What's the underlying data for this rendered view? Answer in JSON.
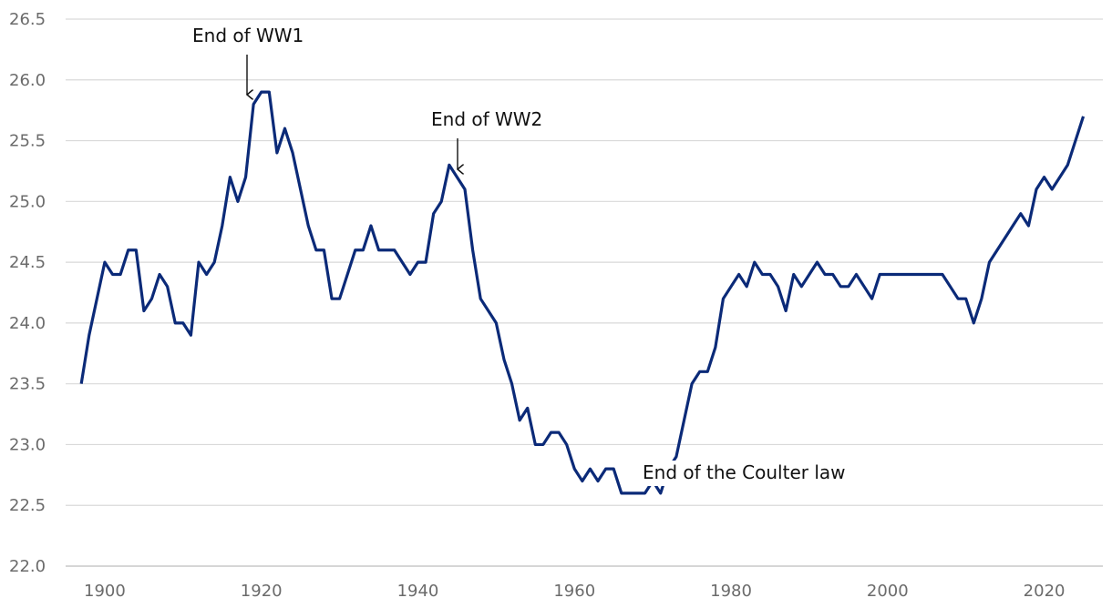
{
  "chart_data": {
    "type": "line",
    "x": [
      1897,
      1898,
      1899,
      1900,
      1901,
      1902,
      1903,
      1904,
      1905,
      1906,
      1907,
      1908,
      1909,
      1910,
      1911,
      1912,
      1913,
      1914,
      1915,
      1916,
      1917,
      1918,
      1919,
      1920,
      1921,
      1922,
      1923,
      1924,
      1925,
      1926,
      1927,
      1928,
      1929,
      1930,
      1931,
      1932,
      1933,
      1934,
      1935,
      1936,
      1937,
      1938,
      1939,
      1940,
      1941,
      1942,
      1943,
      1944,
      1945,
      1946,
      1947,
      1948,
      1949,
      1950,
      1951,
      1952,
      1953,
      1954,
      1955,
      1956,
      1957,
      1958,
      1959,
      1960,
      1961,
      1962,
      1963,
      1964,
      1965,
      1966,
      1967,
      1968,
      1969,
      1970,
      1971,
      1972,
      1973,
      1974,
      1975,
      1976,
      1977,
      1978,
      1979,
      1980,
      1981,
      1982,
      1983,
      1984,
      1985,
      1986,
      1987,
      1988,
      1989,
      1990,
      1991,
      1992,
      1993,
      1994,
      1995,
      1996,
      1997,
      1998,
      1999,
      2000,
      2001,
      2002,
      2003,
      2004,
      2005,
      2006,
      2007,
      2008,
      2009,
      2010,
      2011,
      2012,
      2013,
      2014,
      2015,
      2016,
      2017,
      2018,
      2019,
      2020,
      2021,
      2022,
      2023,
      2024,
      2025
    ],
    "series": [
      {
        "color": "#0b2a78",
        "values": [
          23.5,
          23.9,
          24.2,
          24.5,
          24.4,
          24.4,
          24.6,
          24.6,
          24.1,
          24.2,
          24.4,
          24.3,
          24.0,
          24.0,
          23.9,
          24.5,
          24.4,
          24.5,
          24.8,
          25.2,
          25.0,
          25.2,
          25.8,
          25.9,
          25.9,
          25.4,
          25.6,
          25.4,
          25.1,
          24.8,
          24.6,
          24.6,
          24.2,
          24.2,
          24.4,
          24.6,
          24.6,
          24.8,
          24.6,
          24.6,
          24.6,
          24.5,
          24.4,
          24.5,
          24.5,
          24.9,
          25.0,
          25.3,
          25.2,
          25.1,
          24.6,
          24.2,
          24.1,
          24.0,
          23.7,
          23.5,
          23.2,
          23.3,
          23.0,
          23.0,
          23.1,
          23.1,
          23.0,
          22.8,
          22.7,
          22.8,
          22.7,
          22.8,
          22.8,
          22.6,
          22.6,
          22.6,
          22.6,
          22.7,
          22.6,
          22.8,
          22.9,
          23.2,
          23.5,
          23.6,
          23.6,
          23.8,
          24.2,
          24.3,
          24.4,
          24.3,
          24.5,
          24.4,
          24.4,
          24.3,
          24.1,
          24.4,
          24.3,
          24.4,
          24.5,
          24.4,
          24.4,
          24.3,
          24.3,
          24.4,
          24.3,
          24.2,
          24.4,
          24.4,
          24.4,
          24.4,
          24.4,
          24.4,
          24.4,
          24.4,
          24.4,
          24.3,
          24.2,
          24.2,
          24.0,
          24.2,
          24.5,
          24.6,
          24.7,
          24.8,
          24.9,
          24.8,
          25.1,
          25.2,
          25.1,
          25.2,
          25.3,
          25.5,
          25.7
        ]
      }
    ],
    "xlim": [
      1895,
      2027.5
    ],
    "xticks": [
      1900,
      1920,
      1940,
      1960,
      1980,
      2000,
      2020
    ],
    "ylim": [
      22,
      26.5
    ],
    "yticks": [
      {
        "value": 22,
        "label": "22.0"
      },
      22.5,
      {
        "value": 23,
        "label": "23.0"
      },
      23.5,
      {
        "value": 24,
        "label": "24.0"
      },
      24.5,
      {
        "value": 25,
        "label": "25.0"
      },
      25.5,
      {
        "value": 26,
        "label": "26.0"
      },
      26.5
    ],
    "grid": true,
    "annotations": [
      "End of WW1",
      "End of WW2",
      "End of the Coulter law"
    ]
  }
}
